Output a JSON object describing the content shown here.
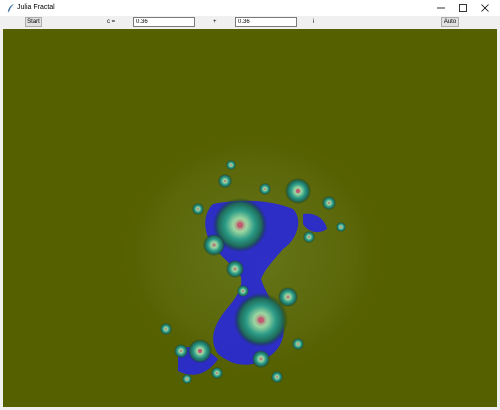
{
  "window": {
    "title": "Julia Fractal",
    "icons": {
      "app": "feather-icon",
      "minimize": "minimize-icon",
      "maximize": "maximize-icon",
      "close": "close-icon"
    }
  },
  "toolbar": {
    "start_label": "Start",
    "c_label": "c =",
    "real_value": "0.36",
    "plus_label": "+",
    "imag_value": "0.36",
    "i_label": "i",
    "auto_label": "Auto"
  },
  "canvas": {
    "background": "#556000",
    "fractal_colors": [
      "#2a2bd0",
      "#2a9a86",
      "#9fd7a0",
      "#c05a70",
      "#123010"
    ]
  }
}
